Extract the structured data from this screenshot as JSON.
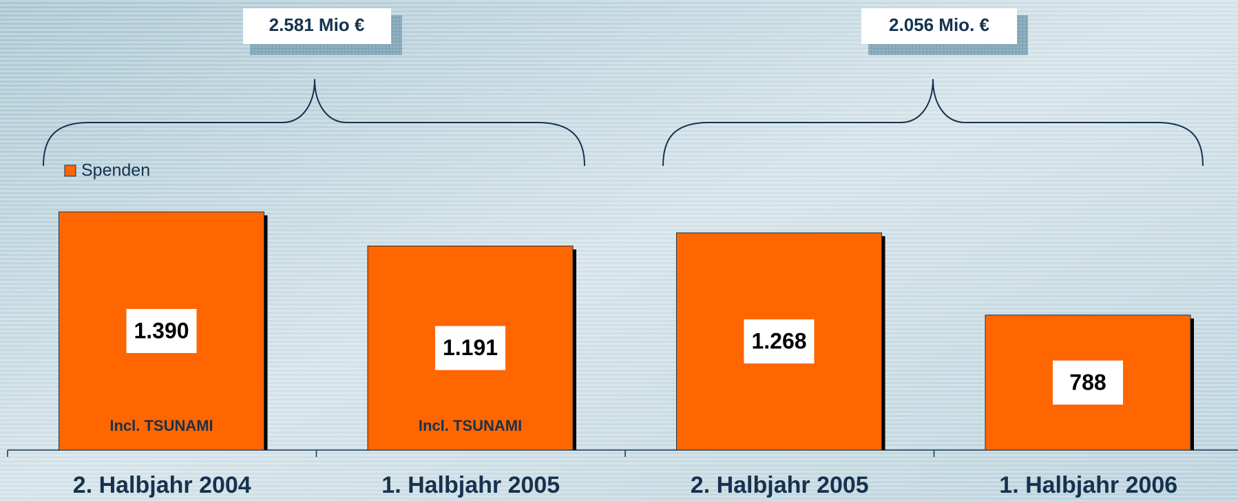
{
  "chart_data": {
    "type": "bar",
    "categories": [
      "2. Halbjahr 2004",
      "1. Halbjahr 2005",
      "2. Halbjahr 2005",
      "1. Halbjahr 2006"
    ],
    "series": [
      {
        "name": "Spenden",
        "color": "#ff6600",
        "values": [
          1390,
          1191,
          1268,
          788
        ],
        "value_labels": [
          "1.390",
          "1.191",
          "1.268",
          "788"
        ]
      }
    ],
    "bar_notes": [
      "Incl. TSUNAMI",
      "Incl. TSUNAMI"
    ],
    "annotations": [
      "2.581 Mio €",
      "2.056 Mio. €"
    ],
    "ylim": [
      0,
      2000
    ]
  }
}
